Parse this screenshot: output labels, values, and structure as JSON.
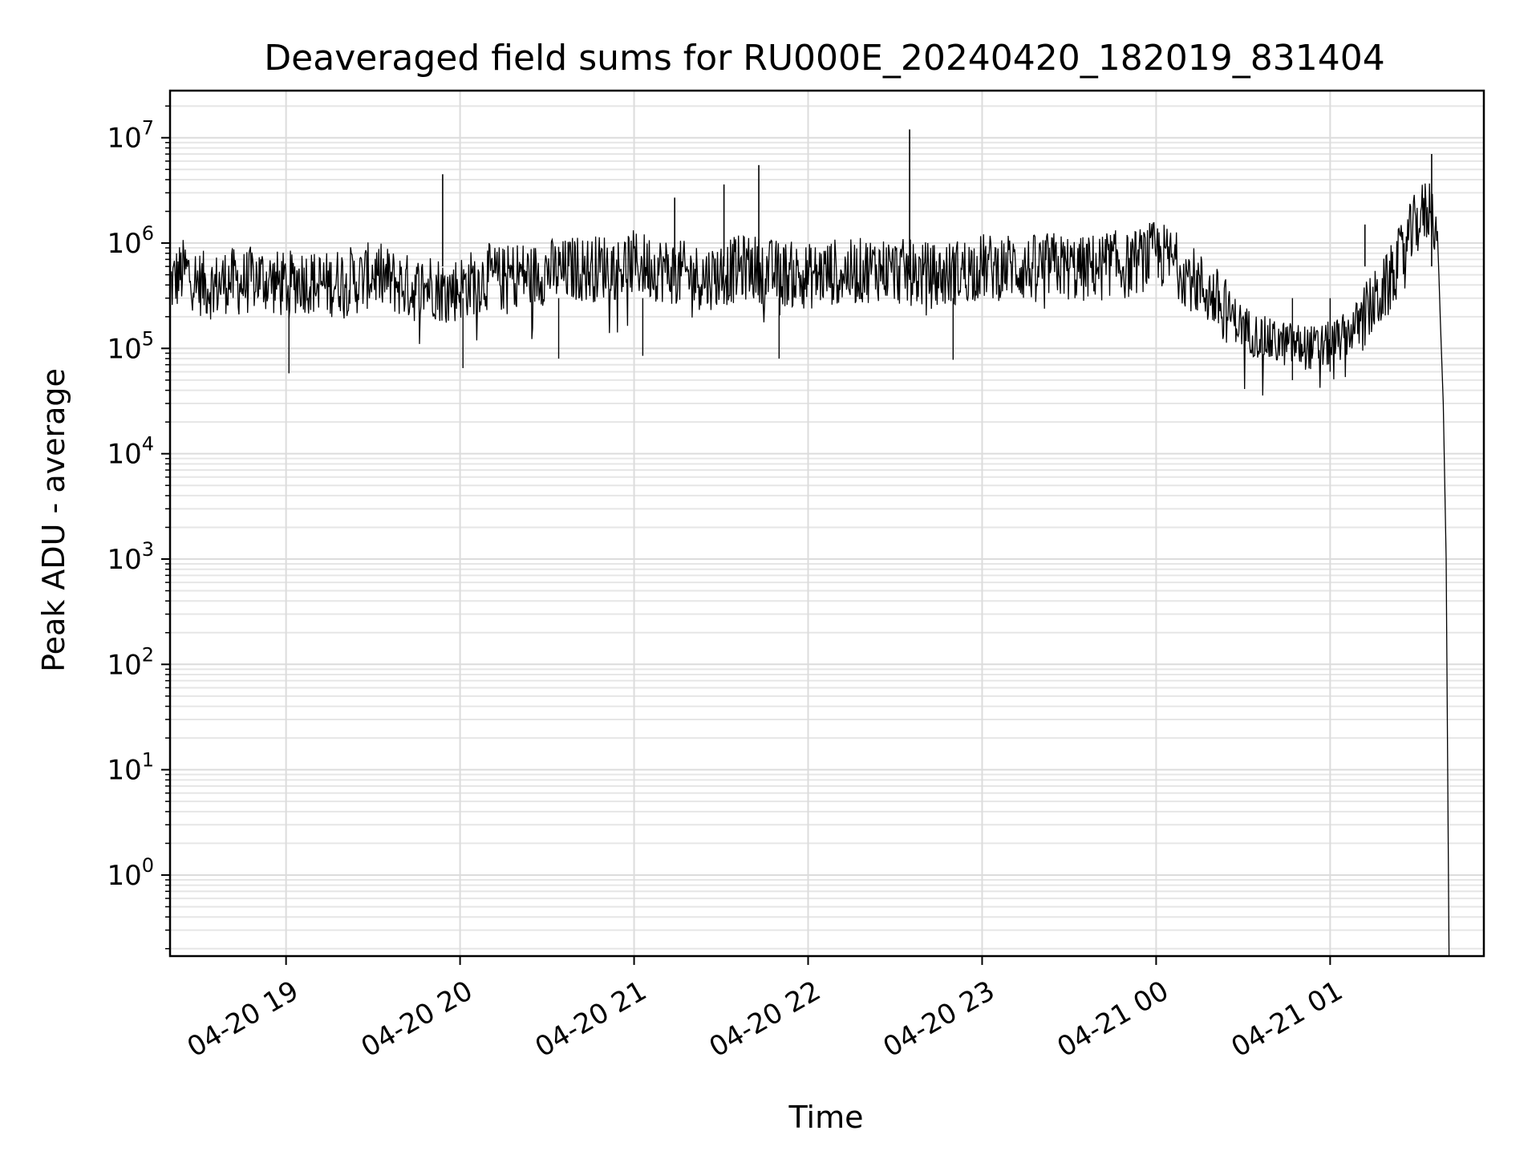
{
  "chart_data": {
    "type": "line",
    "title": "Deaveraged field sums for RU000E_20240420_182019_831404",
    "xlabel": "Time",
    "ylabel": "Peak ADU - average",
    "yscale": "log",
    "ylim": [
      0.17,
      28000000
    ],
    "xlim": [
      "2024-04-20 18:20",
      "2024-04-21 01:53"
    ],
    "grid": true,
    "x_ticks": [
      {
        "value": "2024-04-20 19:00",
        "label": "04-20 19"
      },
      {
        "value": "2024-04-20 20:00",
        "label": "04-20 20"
      },
      {
        "value": "2024-04-20 21:00",
        "label": "04-20 21"
      },
      {
        "value": "2024-04-20 22:00",
        "label": "04-20 22"
      },
      {
        "value": "2024-04-20 23:00",
        "label": "04-20 23"
      },
      {
        "value": "2024-04-21 00:00",
        "label": "04-21 00"
      },
      {
        "value": "2024-04-21 01:00",
        "label": "04-21 01"
      }
    ],
    "y_ticks": [
      {
        "value": 1,
        "base": "10",
        "exp": "0"
      },
      {
        "value": 10,
        "base": "10",
        "exp": "1"
      },
      {
        "value": 100,
        "base": "10",
        "exp": "2"
      },
      {
        "value": 1000,
        "base": "10",
        "exp": "3"
      },
      {
        "value": 10000,
        "base": "10",
        "exp": "4"
      },
      {
        "value": 100000,
        "base": "10",
        "exp": "5"
      },
      {
        "value": 1000000,
        "base": "10",
        "exp": "6"
      },
      {
        "value": 10000000,
        "base": "10",
        "exp": "7"
      }
    ],
    "series": [
      {
        "color": "#000000",
        "points": [
          [
            "2024-04-20 18:20",
            400000
          ],
          [
            "2024-04-20 18:25",
            550000
          ],
          [
            "2024-04-20 18:30",
            420000
          ],
          [
            "2024-04-20 18:35",
            380000
          ],
          [
            "2024-04-20 18:40",
            450000
          ],
          [
            "2024-04-20 18:45",
            410000
          ],
          [
            "2024-04-20 18:50",
            480000
          ],
          [
            "2024-04-20 18:55",
            430000
          ],
          [
            "2024-04-20 19:00",
            390000
          ],
          [
            "2024-04-20 19:05",
            460000
          ],
          [
            "2024-04-20 19:10",
            420000
          ],
          [
            "2024-04-20 19:15",
            400000
          ],
          [
            "2024-04-20 19:20",
            470000
          ],
          [
            "2024-04-20 19:25",
            430000
          ],
          [
            "2024-04-20 19:30",
            520000
          ],
          [
            "2024-04-20 19:35",
            450000
          ],
          [
            "2024-04-20 19:40",
            400000
          ],
          [
            "2024-04-20 19:45",
            360000
          ],
          [
            "2024-04-20 19:50",
            410000
          ],
          [
            "2024-04-20 19:55",
            340000
          ],
          [
            "2024-04-20 20:00",
            380000
          ],
          [
            "2024-04-20 20:05",
            430000
          ],
          [
            "2024-04-20 20:10",
            480000
          ],
          [
            "2024-04-20 20:15",
            450000
          ],
          [
            "2024-04-20 20:20",
            520000
          ],
          [
            "2024-04-20 20:25",
            480000
          ],
          [
            "2024-04-20 20:30",
            550000
          ],
          [
            "2024-04-20 20:35",
            520000
          ],
          [
            "2024-04-20 20:40",
            580000
          ],
          [
            "2024-04-20 20:45",
            560000
          ],
          [
            "2024-04-20 20:50",
            610000
          ],
          [
            "2024-04-20 20:55",
            590000
          ],
          [
            "2024-04-20 21:00",
            640000
          ],
          [
            "2024-04-20 21:05",
            600000
          ],
          [
            "2024-04-20 21:10",
            560000
          ],
          [
            "2024-04-20 21:15",
            520000
          ],
          [
            "2024-04-20 21:20",
            490000
          ],
          [
            "2024-04-20 21:25",
            470000
          ],
          [
            "2024-04-20 21:30",
            510000
          ],
          [
            "2024-04-20 21:35",
            560000
          ],
          [
            "2024-04-20 21:40",
            600000
          ],
          [
            "2024-04-20 21:45",
            540000
          ],
          [
            "2024-04-20 21:50",
            520000
          ],
          [
            "2024-04-20 21:55",
            500000
          ],
          [
            "2024-04-20 22:00",
            480000
          ],
          [
            "2024-04-20 22:05",
            510000
          ],
          [
            "2024-04-20 22:10",
            540000
          ],
          [
            "2024-04-20 22:15",
            520000
          ],
          [
            "2024-04-20 22:20",
            560000
          ],
          [
            "2024-04-20 22:25",
            580000
          ],
          [
            "2024-04-20 22:30",
            540000
          ],
          [
            "2024-04-20 22:35",
            520000
          ],
          [
            "2024-04-20 22:40",
            500000
          ],
          [
            "2024-04-20 22:45",
            480000
          ],
          [
            "2024-04-20 22:50",
            520000
          ],
          [
            "2024-04-20 22:55",
            560000
          ],
          [
            "2024-04-20 23:00",
            600000
          ],
          [
            "2024-04-20 23:05",
            580000
          ],
          [
            "2024-04-20 23:10",
            620000
          ],
          [
            "2024-04-20 23:15",
            560000
          ],
          [
            "2024-04-20 23:20",
            600000
          ],
          [
            "2024-04-20 23:25",
            620000
          ],
          [
            "2024-04-20 23:30",
            580000
          ],
          [
            "2024-04-20 23:35",
            560000
          ],
          [
            "2024-04-20 23:40",
            620000
          ],
          [
            "2024-04-20 23:45",
            650000
          ],
          [
            "2024-04-20 23:50",
            600000
          ],
          [
            "2024-04-20 23:55",
            700000
          ],
          [
            "2024-04-21 00:00",
            800000
          ],
          [
            "2024-04-21 00:05",
            700000
          ],
          [
            "2024-04-21 00:10",
            520000
          ],
          [
            "2024-04-21 00:15",
            400000
          ],
          [
            "2024-04-21 00:20",
            300000
          ],
          [
            "2024-04-21 00:25",
            220000
          ],
          [
            "2024-04-21 00:30",
            160000
          ],
          [
            "2024-04-21 00:35",
            130000
          ],
          [
            "2024-04-21 00:40",
            115000
          ],
          [
            "2024-04-21 00:45",
            110000
          ],
          [
            "2024-04-21 00:50",
            105000
          ],
          [
            "2024-04-21 00:55",
            100000
          ],
          [
            "2024-04-21 01:00",
            110000
          ],
          [
            "2024-04-21 01:05",
            130000
          ],
          [
            "2024-04-21 01:10",
            180000
          ],
          [
            "2024-04-21 01:15",
            260000
          ],
          [
            "2024-04-21 01:20",
            400000
          ],
          [
            "2024-04-21 01:25",
            800000
          ],
          [
            "2024-04-21 01:30",
            1600000
          ],
          [
            "2024-04-21 01:33",
            2000000
          ],
          [
            "2024-04-21 01:35",
            2200000
          ],
          [
            "2024-04-21 01:37",
            1300000
          ],
          [
            "2024-04-21 01:38",
            180000
          ],
          [
            "2024-04-21 01:39",
            30000
          ],
          [
            "2024-04-21 01:40",
            1000
          ],
          [
            "2024-04-21 01:41",
            0.17
          ]
        ],
        "spikes": [
          [
            "2024-04-20 19:54",
            4500000
          ],
          [
            "2024-04-20 21:14",
            2700000
          ],
          [
            "2024-04-20 21:31",
            3600000
          ],
          [
            "2024-04-20 21:43",
            5500000
          ],
          [
            "2024-04-20 22:35",
            12000000
          ],
          [
            "2024-04-21 01:12",
            1500000
          ],
          [
            "2024-04-21 01:35",
            7000000
          ]
        ],
        "dips": [
          [
            "2024-04-20 19:01",
            58000
          ],
          [
            "2024-04-20 20:01",
            65000
          ],
          [
            "2024-04-20 20:34",
            80000
          ],
          [
            "2024-04-20 21:03",
            85000
          ],
          [
            "2024-04-20 21:50",
            80000
          ],
          [
            "2024-04-20 22:50",
            78000
          ],
          [
            "2024-04-21 00:47",
            50000
          ],
          [
            "2024-04-21 01:00",
            60000
          ]
        ]
      }
    ]
  }
}
